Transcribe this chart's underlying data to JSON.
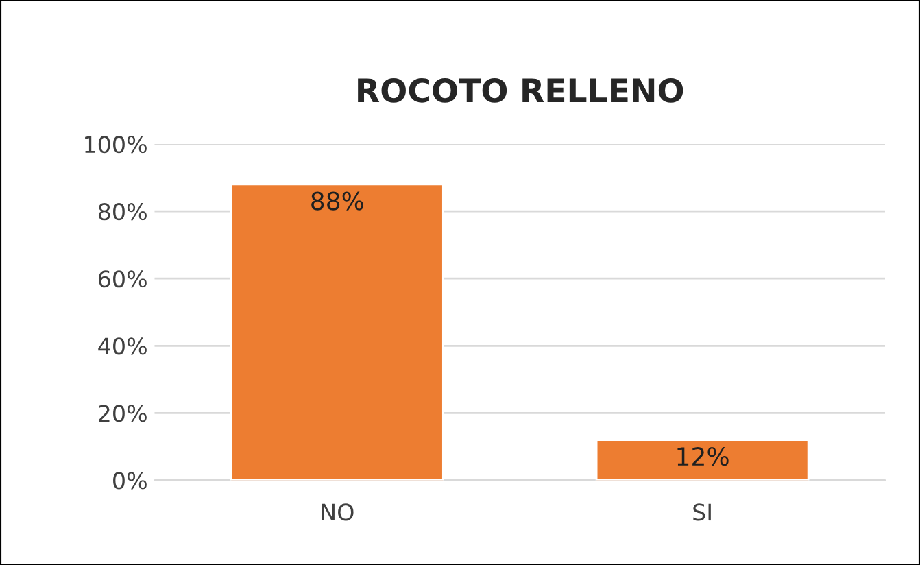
{
  "chart_data": {
    "type": "bar",
    "title": "ROCOTO RELLENO",
    "categories": [
      "NO",
      "SI"
    ],
    "values": [
      88,
      12
    ],
    "value_labels": [
      "88%",
      "12%"
    ],
    "color": "#ed7d31",
    "ylim": [
      0,
      100
    ],
    "yticks": [
      {
        "value": 0,
        "label": "0%"
      },
      {
        "value": 20,
        "label": "20%"
      },
      {
        "value": 40,
        "label": "40%"
      },
      {
        "value": 60,
        "label": "60%"
      },
      {
        "value": 80,
        "label": "80%"
      },
      {
        "value": 100,
        "label": "100%"
      }
    ],
    "grid": "y",
    "legend": false
  }
}
